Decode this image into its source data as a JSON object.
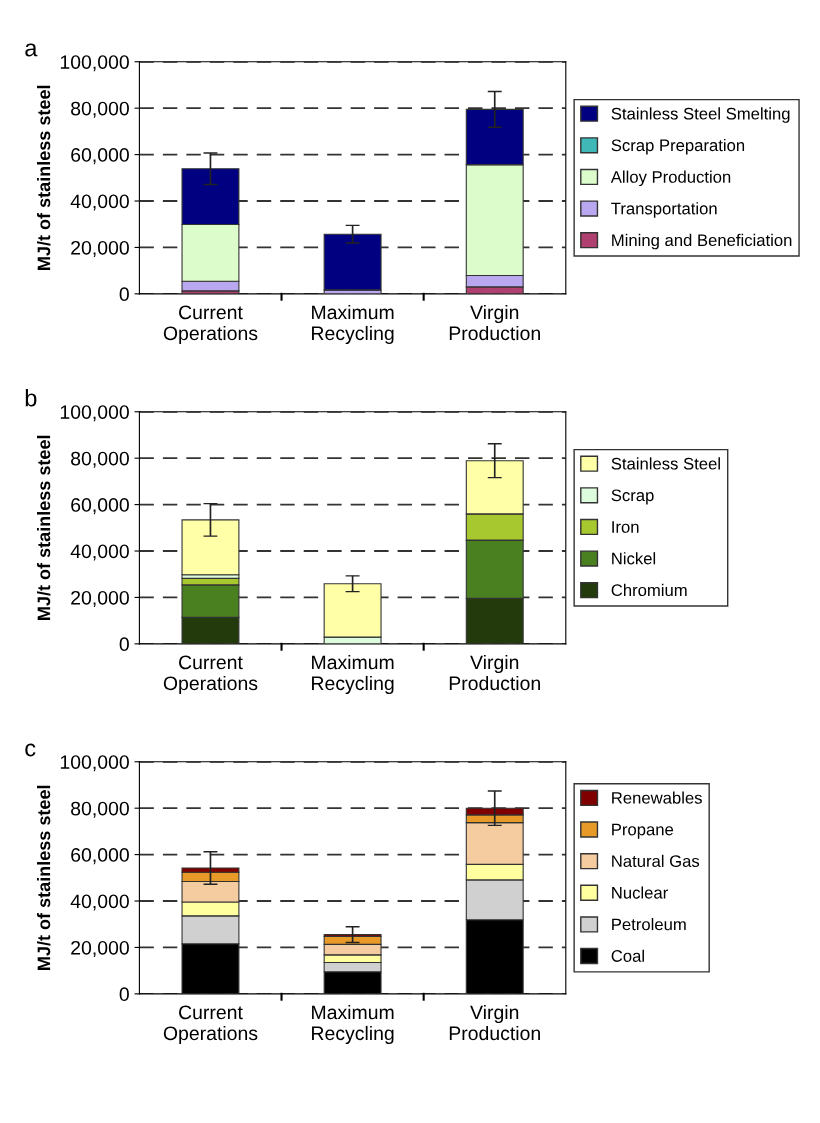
{
  "chart_data": [
    {
      "type": "bar",
      "title": "a",
      "ylabel": "MJ/t of stainless steel",
      "categories": [
        "Current\nOperations",
        "Maximum\nRecycling",
        "Virgin\nProduction"
      ],
      "stacked": true,
      "grid": "y",
      "legend": "right",
      "ylim": [
        0,
        100000
      ],
      "yticks": [
        0,
        {
          "value": 20000,
          "label": "20,000"
        },
        {
          "value": 40000,
          "label": "40,000"
        },
        {
          "value": 60000,
          "label": "60,000"
        },
        {
          "value": 80000,
          "label": "80,000"
        },
        {
          "value": 100000,
          "label": "100,000"
        }
      ],
      "series": [
        {
          "name": "Mining and Beneficiation",
          "color": "#b04070",
          "values": [
            1300,
            0,
            3000
          ]
        },
        {
          "name": "Transportation",
          "color": "#b9a8f0",
          "values": [
            4100,
            1700,
            4900
          ]
        },
        {
          "name": "Alloy Production",
          "color": "#ddfccc",
          "values": [
            24500,
            0,
            47800
          ]
        },
        {
          "name": "Scrap Preparation",
          "color": "#40b8b8",
          "values": [
            0,
            0,
            0
          ]
        },
        {
          "name": "Stainless Steel Smelting",
          "color": "#000080",
          "values": [
            24000,
            24000,
            23800
          ],
          "errors": [
            6800,
            3800,
            7700
          ]
        }
      ]
    },
    {
      "type": "bar",
      "title": "b",
      "ylabel": "MJ/t of stainless steel",
      "categories": [
        "Current\nOperations",
        "Maximum\nRecycling",
        "Virgin\nProduction"
      ],
      "stacked": true,
      "grid": "y",
      "legend": "right",
      "ylim": [
        0,
        100000
      ],
      "yticks": [
        0,
        {
          "value": 20000,
          "label": "20,000"
        },
        {
          "value": 40000,
          "label": "40,000"
        },
        {
          "value": 60000,
          "label": "60,000"
        },
        {
          "value": 80000,
          "label": "80,000"
        },
        {
          "value": 100000,
          "label": "100,000"
        }
      ],
      "series": [
        {
          "name": "Chromium",
          "color": "#233a0c",
          "values": [
            11400,
            0,
            19600
          ]
        },
        {
          "name": "Nickel",
          "color": "#4a8020",
          "values": [
            14000,
            0,
            25100
          ]
        },
        {
          "name": "Iron",
          "color": "#a8c830",
          "values": [
            2800,
            0,
            11300
          ]
        },
        {
          "name": "Scrap",
          "color": "#ddfcdd",
          "values": [
            1600,
            2900,
            0
          ]
        },
        {
          "name": "Stainless Steel",
          "color": "#ffffa8",
          "values": [
            23600,
            23000,
            22900
          ],
          "errors": [
            7000,
            3400,
            7300
          ]
        }
      ]
    },
    {
      "type": "bar",
      "title": "c",
      "ylabel": "MJ/t of stainless steel",
      "categories": [
        "Current\nOperations",
        "Maximum\nRecycling",
        "Virgin\nProduction"
      ],
      "stacked": true,
      "grid": "y",
      "legend": "right",
      "ylim": [
        0,
        100000
      ],
      "yticks": [
        0,
        {
          "value": 20000,
          "label": "20,000"
        },
        {
          "value": 40000,
          "label": "40,000"
        },
        {
          "value": 60000,
          "label": "60,000"
        },
        {
          "value": 80000,
          "label": "80,000"
        },
        {
          "value": 100000,
          "label": "100,000"
        }
      ],
      "series": [
        {
          "name": "Coal",
          "color": "#000000",
          "values": [
            21600,
            9500,
            31900
          ]
        },
        {
          "name": "Petroleum",
          "color": "#d0d0d0",
          "values": [
            12000,
            4000,
            17200
          ]
        },
        {
          "name": "Nuclear",
          "color": "#ffffa0",
          "values": [
            6000,
            3300,
            6700
          ]
        },
        {
          "name": "Natural Gas",
          "color": "#f5cca0",
          "values": [
            8800,
            4500,
            18000
          ]
        },
        {
          "name": "Propane",
          "color": "#e89a28",
          "values": [
            4000,
            3400,
            3300
          ]
        },
        {
          "name": "Renewables",
          "color": "#800000",
          "values": [
            1800,
            800,
            2900
          ],
          "errors": [
            7000,
            3400,
            7400
          ]
        }
      ]
    }
  ]
}
